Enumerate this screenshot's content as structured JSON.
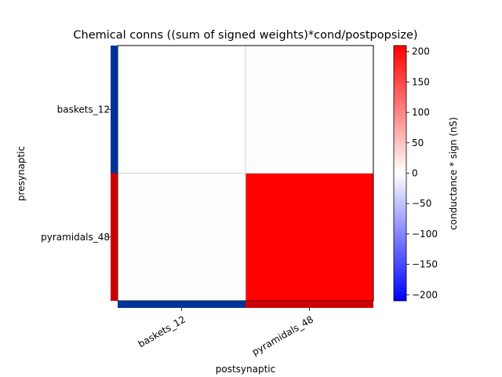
{
  "chart_data": {
    "type": "heatmap",
    "title": "Chemical conns ((sum of signed weights)*cond/postpopsize)",
    "xlabel": "postsynaptic",
    "ylabel": "presynaptic",
    "x_categories": [
      "baskets_12",
      "pyramidals_48"
    ],
    "y_categories": [
      "baskets_12",
      "pyramidals_48"
    ],
    "population_colors": [
      "#003399",
      "#cc0000"
    ],
    "values": [
      [
        0,
        -2
      ],
      [
        1,
        210
      ]
    ],
    "colorbar": {
      "label": "conductance * sign (nS)",
      "range": [
        -210,
        210
      ],
      "ticks": [
        -200,
        -150,
        -100,
        -50,
        0,
        50,
        100,
        150,
        200
      ],
      "tick_labels": [
        "−200",
        "−150",
        "−100",
        "−50",
        "0",
        "50",
        "100",
        "150",
        "200"
      ],
      "colormap": [
        "#0000ff",
        "#ffffff",
        "#ff0000"
      ]
    },
    "grid": true
  }
}
